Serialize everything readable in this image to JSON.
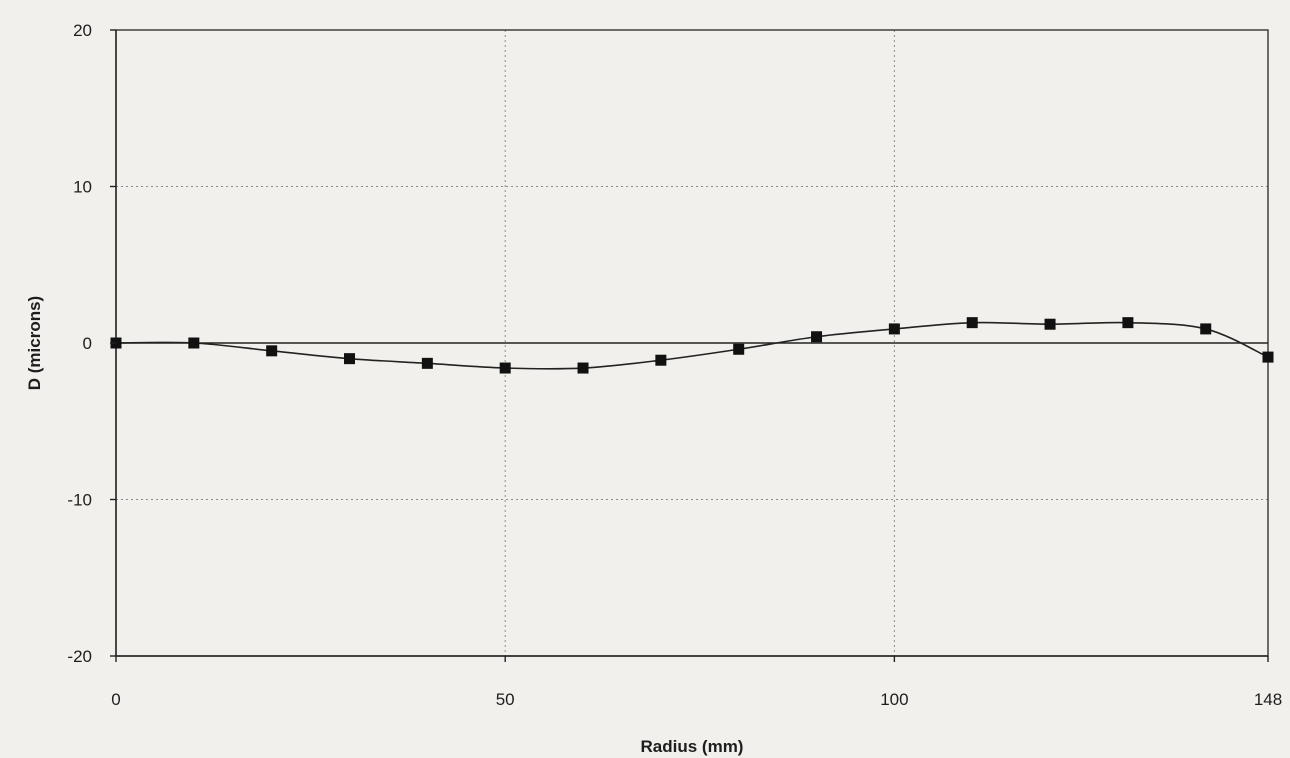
{
  "chart_data": {
    "type": "line",
    "title": "",
    "xlabel": "Radius (mm)",
    "ylabel": "D (microns)",
    "xlim": [
      0,
      148
    ],
    "ylim": [
      -20,
      20
    ],
    "x_ticks": [
      0,
      50,
      100,
      148
    ],
    "y_ticks": [
      -20,
      -10,
      0,
      10,
      20
    ],
    "grid": true,
    "legend": "none",
    "series": [
      {
        "marker": "square",
        "color": "#111111",
        "x": [
          0,
          10,
          20,
          30,
          40,
          50,
          60,
          70,
          80,
          90,
          100,
          110,
          120,
          130,
          140,
          148
        ],
        "y": [
          0,
          0,
          -0.5,
          -1.0,
          -1.3,
          -1.6,
          -1.6,
          -1.1,
          -0.4,
          0.4,
          0.9,
          1.3,
          1.2,
          1.3,
          0.9,
          -0.9
        ]
      }
    ]
  }
}
